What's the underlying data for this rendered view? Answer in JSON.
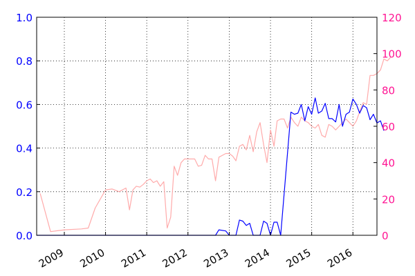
{
  "chart_data": {
    "type": "line",
    "title": "",
    "xlabel": "",
    "ylabel": "",
    "x_tick_labels": [
      "2009",
      "2010",
      "2011",
      "2012",
      "2013",
      "2014",
      "2015",
      "2016"
    ],
    "x_ticks": [
      "2009-01-01",
      "2010-01-01",
      "2011-01-01",
      "2012-01-01",
      "2013-01-01",
      "2014-01-01",
      "2015-01-01",
      "2016-01-01"
    ],
    "x_range": [
      "2008-05-01",
      "2016-08-01"
    ],
    "y_left": {
      "range": [
        0,
        1.0
      ],
      "tick_labels": [
        "0.0",
        "0.2",
        "0.4",
        "0.6",
        "0.8",
        "1.0"
      ],
      "color": "#0000ff"
    },
    "y_right": {
      "range": [
        0,
        120
      ],
      "tick_labels": [
        "0",
        "20",
        "40",
        "60",
        "80",
        "100",
        "120"
      ],
      "color": "#ff1493"
    },
    "grid": true,
    "series": [
      {
        "axis": "left",
        "color": "#0000ff",
        "points": [
          [
            "2008-05-01",
            0.0
          ],
          [
            "2010-01-01",
            0.0
          ],
          [
            "2012-09-01",
            0.0
          ],
          [
            "2012-10-01",
            0.025
          ],
          [
            "2012-12-01",
            0.02
          ],
          [
            "2013-01-01",
            0.0
          ],
          [
            "2013-03-01",
            0.0
          ],
          [
            "2013-04-01",
            0.07
          ],
          [
            "2013-05-01",
            0.065
          ],
          [
            "2013-06-01",
            0.045
          ],
          [
            "2013-07-01",
            0.055
          ],
          [
            "2013-08-01",
            0.0
          ],
          [
            "2013-10-01",
            0.0
          ],
          [
            "2013-11-01",
            0.065
          ],
          [
            "2013-12-01",
            0.055
          ],
          [
            "2014-01-01",
            0.0
          ],
          [
            "2014-02-01",
            0.06
          ],
          [
            "2014-03-01",
            0.06
          ],
          [
            "2014-04-01",
            0.0
          ],
          [
            "2014-07-01",
            0.565
          ],
          [
            "2014-08-01",
            0.555
          ],
          [
            "2014-09-01",
            0.56
          ],
          [
            "2014-10-01",
            0.6
          ],
          [
            "2014-11-01",
            0.525
          ],
          [
            "2014-12-01",
            0.59
          ],
          [
            "2015-01-01",
            0.555
          ],
          [
            "2015-02-01",
            0.63
          ],
          [
            "2015-03-01",
            0.56
          ],
          [
            "2015-04-01",
            0.57
          ],
          [
            "2015-05-01",
            0.605
          ],
          [
            "2015-06-01",
            0.535
          ],
          [
            "2015-07-01",
            0.535
          ],
          [
            "2015-08-01",
            0.52
          ],
          [
            "2015-09-01",
            0.6
          ],
          [
            "2015-10-01",
            0.5
          ],
          [
            "2015-11-01",
            0.555
          ],
          [
            "2015-12-01",
            0.565
          ],
          [
            "2016-01-01",
            0.625
          ],
          [
            "2016-02-01",
            0.6
          ],
          [
            "2016-03-01",
            0.56
          ],
          [
            "2016-04-01",
            0.595
          ],
          [
            "2016-05-01",
            0.585
          ],
          [
            "2016-06-01",
            0.53
          ],
          [
            "2016-07-01",
            0.555
          ],
          [
            "2016-08-01",
            0.515
          ],
          [
            "2016-09-01",
            0.525
          ],
          [
            "2016-10-01",
            0.48
          ]
        ]
      },
      {
        "axis": "right",
        "color": "#ffaaaa",
        "points": [
          [
            "2008-06-01",
            23
          ],
          [
            "2008-09-01",
            2
          ],
          [
            "2008-11-01",
            2.5
          ],
          [
            "2009-01-01",
            3
          ],
          [
            "2009-06-01",
            3.5
          ],
          [
            "2009-08-01",
            4
          ],
          [
            "2009-10-01",
            15
          ],
          [
            "2010-01-01",
            25
          ],
          [
            "2010-03-01",
            25.5
          ],
          [
            "2010-05-01",
            24
          ],
          [
            "2010-07-01",
            26
          ],
          [
            "2010-08-01",
            14
          ],
          [
            "2010-09-01",
            25
          ],
          [
            "2010-10-01",
            27
          ],
          [
            "2010-11-01",
            26.5
          ],
          [
            "2010-12-01",
            28
          ],
          [
            "2011-01-01",
            30
          ],
          [
            "2011-02-01",
            31
          ],
          [
            "2011-03-01",
            29
          ],
          [
            "2011-04-01",
            30
          ],
          [
            "2011-05-01",
            27
          ],
          [
            "2011-06-01",
            29.5
          ],
          [
            "2011-07-01",
            4
          ],
          [
            "2011-08-01",
            10
          ],
          [
            "2011-09-01",
            38
          ],
          [
            "2011-10-01",
            33
          ],
          [
            "2011-11-01",
            40
          ],
          [
            "2011-12-01",
            42
          ],
          [
            "2012-01-01",
            42
          ],
          [
            "2012-03-01",
            42
          ],
          [
            "2012-04-01",
            38
          ],
          [
            "2012-05-01",
            38.5
          ],
          [
            "2012-06-01",
            44
          ],
          [
            "2012-07-01",
            42
          ],
          [
            "2012-08-01",
            42
          ],
          [
            "2012-09-01",
            30
          ],
          [
            "2012-10-01",
            43
          ],
          [
            "2012-11-01",
            44
          ],
          [
            "2012-12-01",
            45
          ],
          [
            "2013-01-01",
            45
          ],
          [
            "2013-02-01",
            43.5
          ],
          [
            "2013-03-01",
            41
          ],
          [
            "2013-04-01",
            49
          ],
          [
            "2013-05-01",
            50
          ],
          [
            "2013-06-01",
            47
          ],
          [
            "2013-07-01",
            55
          ],
          [
            "2013-08-01",
            46
          ],
          [
            "2013-09-01",
            57
          ],
          [
            "2013-10-01",
            62
          ],
          [
            "2013-11-01",
            50
          ],
          [
            "2013-12-01",
            40
          ],
          [
            "2014-01-01",
            58
          ],
          [
            "2014-02-01",
            49
          ],
          [
            "2014-03-01",
            63
          ],
          [
            "2014-04-01",
            64
          ],
          [
            "2014-05-01",
            64
          ],
          [
            "2014-06-01",
            59
          ],
          [
            "2014-07-01",
            65
          ],
          [
            "2014-08-01",
            62
          ],
          [
            "2014-09-01",
            60
          ],
          [
            "2014-10-01",
            65
          ],
          [
            "2014-11-01",
            63
          ],
          [
            "2014-12-01",
            62
          ],
          [
            "2015-01-01",
            60
          ],
          [
            "2015-02-01",
            59
          ],
          [
            "2015-03-01",
            61
          ],
          [
            "2015-04-01",
            55
          ],
          [
            "2015-05-01",
            54
          ],
          [
            "2015-06-01",
            61
          ],
          [
            "2015-07-01",
            60
          ],
          [
            "2015-08-01",
            58
          ],
          [
            "2015-09-01",
            60
          ],
          [
            "2015-10-01",
            62
          ],
          [
            "2015-11-01",
            64
          ],
          [
            "2015-12-01",
            62
          ],
          [
            "2016-01-01",
            60
          ],
          [
            "2016-02-01",
            63
          ],
          [
            "2016-03-01",
            68
          ],
          [
            "2016-04-01",
            73
          ],
          [
            "2016-05-01",
            72
          ],
          [
            "2016-06-01",
            88
          ],
          [
            "2016-07-01",
            88
          ],
          [
            "2016-08-01",
            89
          ],
          [
            "2016-09-01",
            91
          ],
          [
            "2016-10-01",
            97
          ],
          [
            "2016-11-01",
            96
          ],
          [
            "2016-12-01",
            98
          ]
        ]
      }
    ]
  }
}
